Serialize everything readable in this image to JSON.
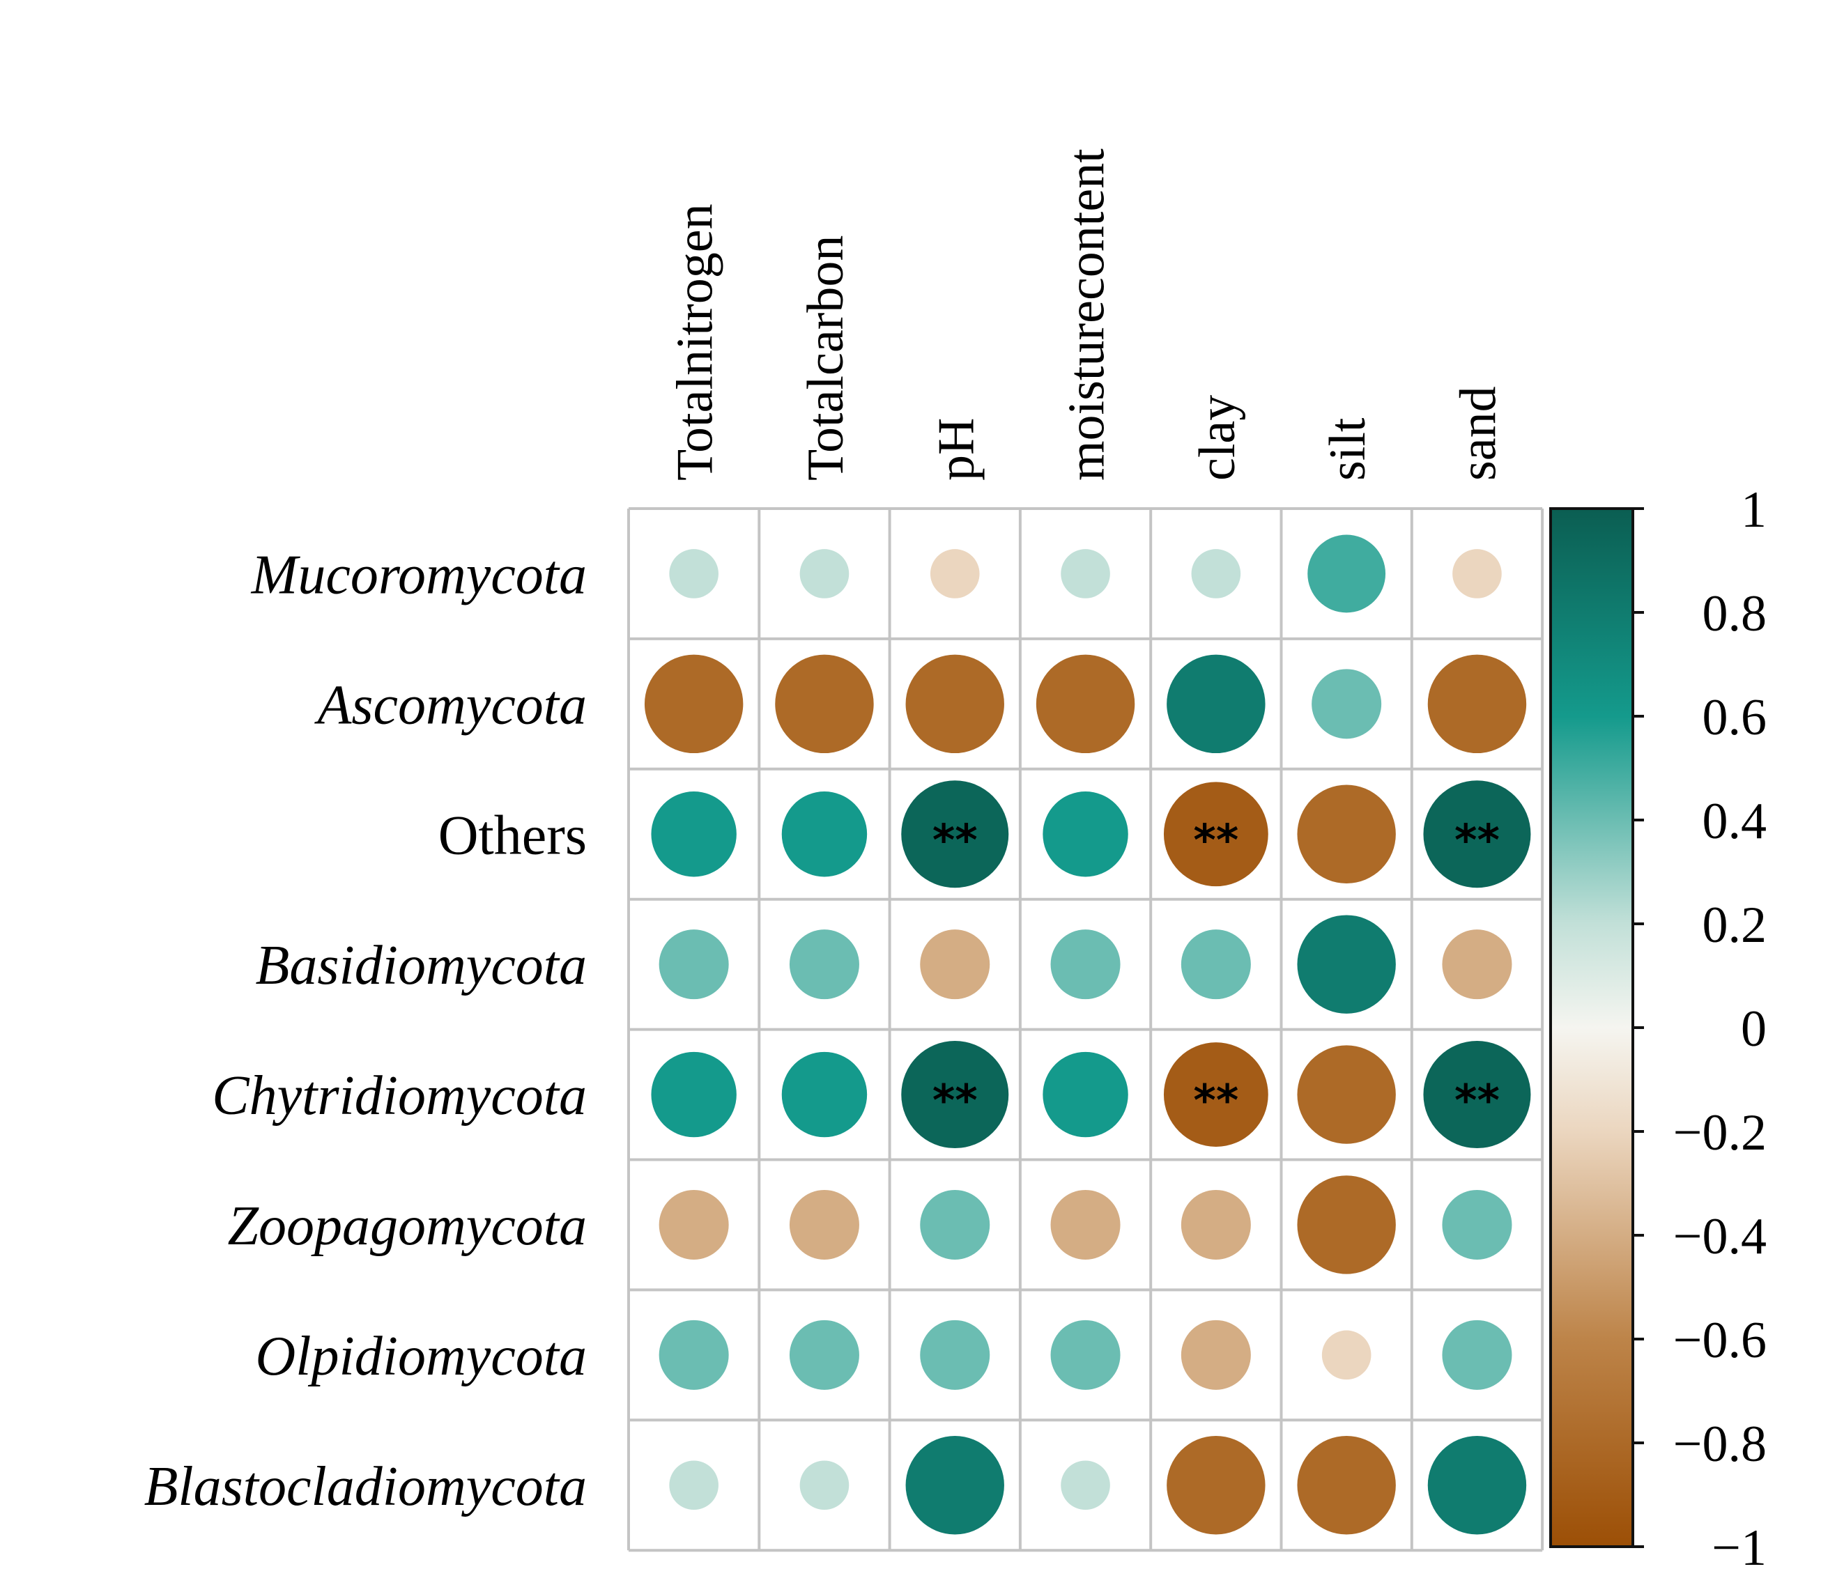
{
  "chart_data": {
    "type": "heatmap",
    "style": "circle correlation matrix",
    "columns": [
      "Totalnitrogen",
      "Totalcarbon",
      "pH",
      "moisturecontent",
      "clay",
      "silt",
      "sand"
    ],
    "rows": [
      {
        "label": "Mucoromycota",
        "italic": true
      },
      {
        "label": "Ascomycota",
        "italic": true
      },
      {
        "label": "Others",
        "italic": false
      },
      {
        "label": "Basidiomycota",
        "italic": true
      },
      {
        "label": "Chytridiomycota",
        "italic": true
      },
      {
        "label": "Zoopagomycota",
        "italic": true
      },
      {
        "label": "Olpidiomycota",
        "italic": true
      },
      {
        "label": "Blastocladiomycota",
        "italic": true
      }
    ],
    "values": [
      [
        0.2,
        0.2,
        -0.2,
        0.2,
        0.2,
        0.5,
        -0.2
      ],
      [
        -0.8,
        -0.8,
        -0.8,
        -0.8,
        0.8,
        0.4,
        -0.8
      ],
      [
        0.6,
        0.6,
        0.95,
        0.6,
        -0.9,
        -0.8,
        0.95
      ],
      [
        0.4,
        0.4,
        -0.4,
        0.4,
        0.4,
        0.8,
        -0.4
      ],
      [
        0.6,
        0.6,
        0.95,
        0.6,
        -0.9,
        -0.8,
        0.95
      ],
      [
        -0.4,
        -0.4,
        0.4,
        -0.4,
        -0.4,
        -0.8,
        0.4
      ],
      [
        0.4,
        0.4,
        0.4,
        0.4,
        -0.4,
        -0.2,
        0.4
      ],
      [
        0.2,
        0.2,
        0.8,
        0.2,
        -0.8,
        -0.8,
        0.8
      ]
    ],
    "significance": [
      [
        "",
        "",
        "",
        "",
        "",
        "",
        ""
      ],
      [
        "",
        "",
        "",
        "",
        "",
        "",
        ""
      ],
      [
        "",
        "",
        "**",
        "",
        "**",
        "",
        "**"
      ],
      [
        "",
        "",
        "",
        "",
        "",
        "",
        ""
      ],
      [
        "",
        "",
        "**",
        "",
        "**",
        "",
        "**"
      ],
      [
        "",
        "",
        "",
        "",
        "",
        "",
        ""
      ],
      [
        "",
        "",
        "",
        "",
        "",
        "",
        ""
      ],
      [
        "",
        "",
        "",
        "",
        "",
        "",
        ""
      ]
    ],
    "colorbar": {
      "range": [
        -1,
        1
      ],
      "ticks": [
        1,
        0.8,
        0.6,
        0.4,
        0.2,
        0,
        -0.2,
        -0.4,
        -0.6,
        -0.8,
        -1
      ],
      "tick_labels": [
        "1",
        "0.8",
        "0.6",
        "0.4",
        "0.2",
        "0",
        "−0.2",
        "−0.4",
        "−0.6",
        "−0.8",
        "−1"
      ],
      "color_stops": [
        {
          "value": -1,
          "color": "#9c4f06"
        },
        {
          "value": -0.6,
          "color": "#bd8449"
        },
        {
          "value": -0.2,
          "color": "#ebd6bf"
        },
        {
          "value": 0,
          "color": "#f5f5f0"
        },
        {
          "value": 0.2,
          "color": "#c2e0d8"
        },
        {
          "value": 0.6,
          "color": "#149a8c"
        },
        {
          "value": 1,
          "color": "#0b5e52"
        }
      ]
    },
    "grid": true,
    "legend_position": "right"
  }
}
